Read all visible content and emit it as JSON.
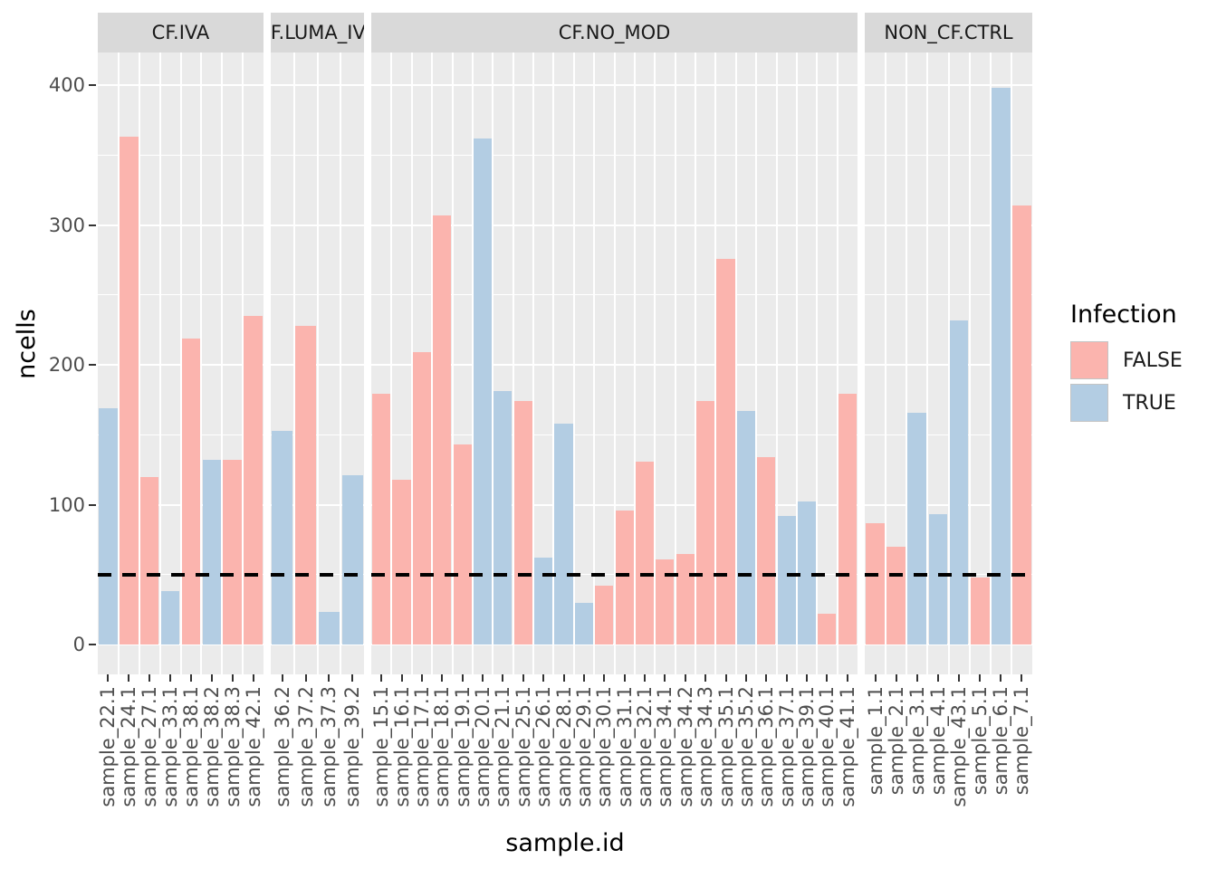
{
  "y_axis": {
    "title": "ncells",
    "ticks": [
      0,
      100,
      200,
      300,
      400
    ]
  },
  "x_axis": {
    "title": "sample.id"
  },
  "legend": {
    "title": "Infection",
    "entries": [
      {
        "label": "FALSE",
        "color": "#FBB4AE"
      },
      {
        "label": "TRUE",
        "color": "#B3CDE3"
      }
    ]
  },
  "threshold_line": {
    "value": 50,
    "style": "dashed",
    "color": "#000000"
  },
  "colors": {
    "panel_background": "#EBEBEB",
    "strip_background": "#D9D9D9",
    "gridline": "#FFFFFF",
    "false_fill": "#FBB4AE",
    "true_fill": "#B3CDE3"
  },
  "chart_data": {
    "type": "bar",
    "title": "",
    "xlabel": "sample.id",
    "ylabel": "ncells",
    "ylim": [
      0,
      424
    ],
    "grid": "on",
    "legend_position": "right",
    "facets": [
      {
        "label": "CF.IVA",
        "samples": [
          {
            "id": "sample_22.1",
            "infection": "TRUE",
            "ncells": 169
          },
          {
            "id": "sample_24.1",
            "infection": "FALSE",
            "ncells": 363
          },
          {
            "id": "sample_27.1",
            "infection": "FALSE",
            "ncells": 120
          },
          {
            "id": "sample_33.1",
            "infection": "TRUE",
            "ncells": 38
          },
          {
            "id": "sample_38.1",
            "infection": "FALSE",
            "ncells": 219
          },
          {
            "id": "sample_38.2",
            "infection": "TRUE",
            "ncells": 132
          },
          {
            "id": "sample_38.3",
            "infection": "FALSE",
            "ncells": 132
          },
          {
            "id": "sample_42.1",
            "infection": "FALSE",
            "ncells": 235
          }
        ]
      },
      {
        "label": "CF.LUMA_IVA",
        "label_clipped": true,
        "samples": [
          {
            "id": "sample_36.2",
            "infection": "TRUE",
            "ncells": 153
          },
          {
            "id": "sample_37.2",
            "infection": "FALSE",
            "ncells": 228
          },
          {
            "id": "sample_37.3",
            "infection": "TRUE",
            "ncells": 23
          },
          {
            "id": "sample_39.2",
            "infection": "TRUE",
            "ncells": 121
          }
        ]
      },
      {
        "label": "CF.NO_MOD",
        "samples": [
          {
            "id": "sample_15.1",
            "infection": "FALSE",
            "ncells": 179
          },
          {
            "id": "sample_16.1",
            "infection": "FALSE",
            "ncells": 118
          },
          {
            "id": "sample_17.1",
            "infection": "FALSE",
            "ncells": 209
          },
          {
            "id": "sample_18.1",
            "infection": "FALSE",
            "ncells": 307
          },
          {
            "id": "sample_19.1",
            "infection": "FALSE",
            "ncells": 143
          },
          {
            "id": "sample_20.1",
            "infection": "TRUE",
            "ncells": 362
          },
          {
            "id": "sample_21.1",
            "infection": "TRUE",
            "ncells": 181
          },
          {
            "id": "sample_25.1",
            "infection": "FALSE",
            "ncells": 174
          },
          {
            "id": "sample_26.1",
            "infection": "TRUE",
            "ncells": 62
          },
          {
            "id": "sample_28.1",
            "infection": "TRUE",
            "ncells": 158
          },
          {
            "id": "sample_29.1",
            "infection": "TRUE",
            "ncells": 30
          },
          {
            "id": "sample_30.1",
            "infection": "FALSE",
            "ncells": 42
          },
          {
            "id": "sample_31.1",
            "infection": "FALSE",
            "ncells": 96
          },
          {
            "id": "sample_32.1",
            "infection": "FALSE",
            "ncells": 131
          },
          {
            "id": "sample_34.1",
            "infection": "FALSE",
            "ncells": 61
          },
          {
            "id": "sample_34.2",
            "infection": "FALSE",
            "ncells": 65
          },
          {
            "id": "sample_34.3",
            "infection": "FALSE",
            "ncells": 174
          },
          {
            "id": "sample_35.1",
            "infection": "FALSE",
            "ncells": 276
          },
          {
            "id": "sample_35.2",
            "infection": "TRUE",
            "ncells": 167
          },
          {
            "id": "sample_36.1",
            "infection": "FALSE",
            "ncells": 134
          },
          {
            "id": "sample_37.1",
            "infection": "TRUE",
            "ncells": 92
          },
          {
            "id": "sample_39.1",
            "infection": "TRUE",
            "ncells": 102
          },
          {
            "id": "sample_40.1",
            "infection": "FALSE",
            "ncells": 22
          },
          {
            "id": "sample_41.1",
            "infection": "FALSE",
            "ncells": 179
          }
        ]
      },
      {
        "label": "NON_CF.CTRL",
        "samples": [
          {
            "id": "sample_1.1",
            "infection": "FALSE",
            "ncells": 87
          },
          {
            "id": "sample_2.1",
            "infection": "FALSE",
            "ncells": 70
          },
          {
            "id": "sample_3.1",
            "infection": "TRUE",
            "ncells": 166
          },
          {
            "id": "sample_4.1",
            "infection": "TRUE",
            "ncells": 93
          },
          {
            "id": "sample_43.1",
            "infection": "TRUE",
            "ncells": 232
          },
          {
            "id": "sample_5.1",
            "infection": "FALSE",
            "ncells": 48
          },
          {
            "id": "sample_6.1",
            "infection": "TRUE",
            "ncells": 398
          },
          {
            "id": "sample_7.1",
            "infection": "FALSE",
            "ncells": 314
          }
        ]
      }
    ]
  }
}
